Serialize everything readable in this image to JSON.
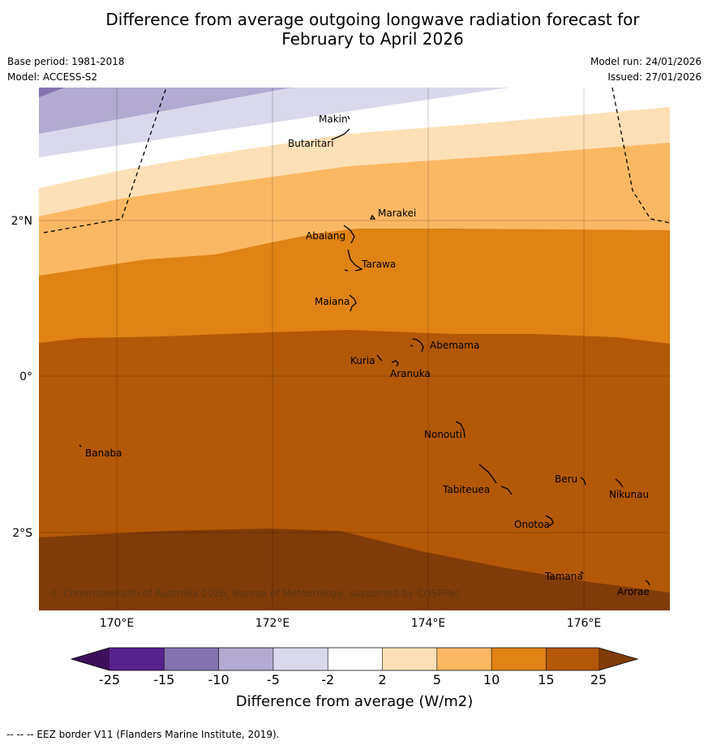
{
  "title": {
    "line1": "Difference from average outgoing longwave radiation forecast for",
    "line2": "February to April 2026"
  },
  "meta": {
    "base_period": "Base period: 1981-2018",
    "model": "Model: ACCESS-S2",
    "model_run": "Model run: 24/01/2026",
    "issued": "Issued: 27/01/2026"
  },
  "map": {
    "lon_ticks": [
      "170°E",
      "172°E",
      "174°E",
      "176°E"
    ],
    "lat_ticks": [
      "2°N",
      "0°",
      "2°S"
    ],
    "places": [
      "Makin",
      "Butaritari",
      "Marakei",
      "Abaiang",
      "Tarawa",
      "Maiana",
      "Abemama",
      "Kuria",
      "Aranuka",
      "Nonouti",
      "Banaba",
      "Beru",
      "Nikunau",
      "Tabiteuea",
      "Onotoa",
      "Tamana",
      "Arorae"
    ],
    "copyright": "© Commonwealth of Australia 2026, Bureau of Meteorology, supported by COSPPac"
  },
  "colorbar": {
    "ticks": [
      "-25",
      "-15",
      "-10",
      "-5",
      "-2",
      "2",
      "5",
      "10",
      "15",
      "25"
    ],
    "colors": [
      "#3b0f59",
      "#56238c",
      "#8473b0",
      "#b2aad2",
      "#d9d9eb",
      "#ffffff",
      "#fee0b6",
      "#fbb863",
      "#e08214",
      "#b35806",
      "#7f3b08"
    ],
    "label": "Difference from average (W/m2)"
  },
  "legend_note": "--  --  -- EEZ border V11 (Flanders Marine Institute, 2019)."
}
